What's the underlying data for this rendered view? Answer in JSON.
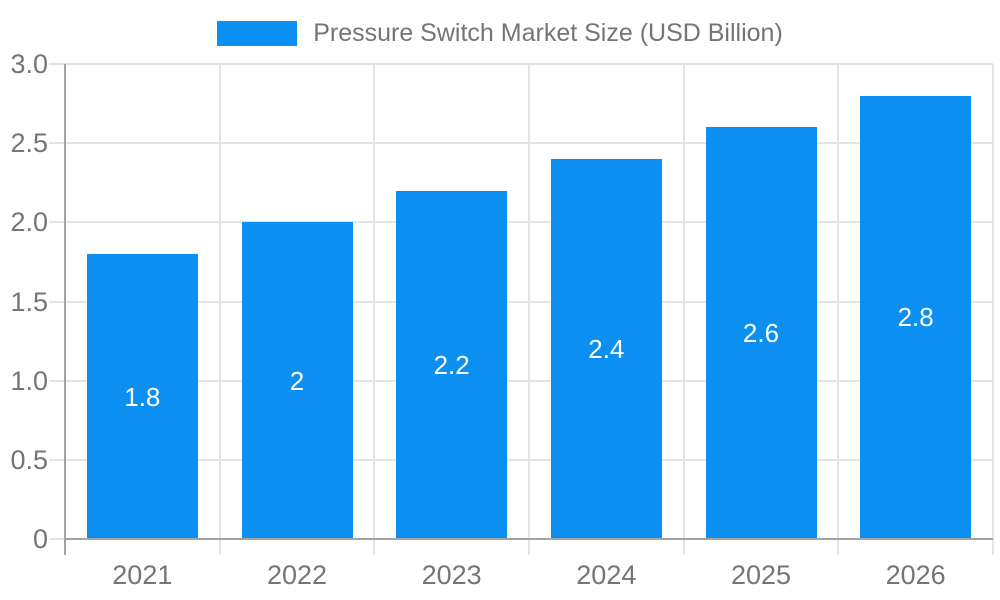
{
  "legend": {
    "label": "Pressure Switch Market Size (USD Billion)"
  },
  "chart_data": {
    "type": "bar",
    "title": "Pressure Switch Market Size (USD Billion)",
    "categories": [
      "2021",
      "2022",
      "2023",
      "2024",
      "2025",
      "2026"
    ],
    "values": [
      1.8,
      2,
      2.2,
      2.4,
      2.6,
      2.8
    ],
    "data_labels": [
      "1.8",
      "2",
      "2.2",
      "2.4",
      "2.6",
      "2.8"
    ],
    "y_ticks": [
      "3.0",
      "2.5",
      "2.0",
      "1.5",
      "1.0",
      "0.5",
      "0"
    ],
    "y_tick_values": [
      3.0,
      2.5,
      2.0,
      1.5,
      1.0,
      0.5,
      0
    ],
    "ylim": [
      0,
      3.0
    ],
    "xlabel": "",
    "ylabel": "",
    "grid": true,
    "legend_position": "top",
    "colors": {
      "bar": "#0b90f2",
      "gridline": "#e4e4e4",
      "axis": "#a3a3a3",
      "tick_label": "#757575",
      "data_label": "#ffffff",
      "background": "#ffffff"
    }
  }
}
